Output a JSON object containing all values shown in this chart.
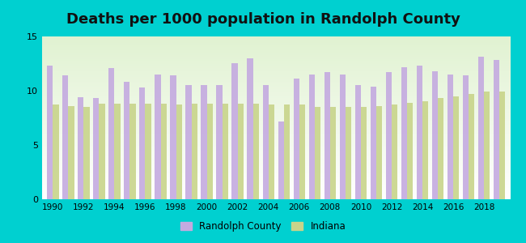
{
  "title": "Deaths per 1000 population in Randolph County",
  "years": [
    1990,
    1991,
    1992,
    1993,
    1994,
    1995,
    1996,
    1997,
    1998,
    1999,
    2000,
    2001,
    2002,
    2003,
    2004,
    2005,
    2006,
    2007,
    2008,
    2009,
    2010,
    2011,
    2012,
    2013,
    2014,
    2015,
    2016,
    2017,
    2018,
    2019
  ],
  "randolph": [
    12.3,
    11.4,
    9.4,
    9.3,
    12.1,
    10.8,
    10.3,
    11.5,
    11.4,
    10.5,
    10.5,
    10.5,
    12.5,
    13.0,
    10.5,
    7.2,
    11.1,
    11.5,
    11.7,
    11.5,
    10.5,
    10.4,
    11.7,
    12.2,
    12.3,
    11.8,
    11.5,
    11.4,
    13.1,
    12.8
  ],
  "indiana": [
    8.7,
    8.6,
    8.5,
    8.8,
    8.8,
    8.8,
    8.8,
    8.8,
    8.7,
    8.8,
    8.8,
    8.8,
    8.8,
    8.8,
    8.7,
    8.7,
    8.7,
    8.5,
    8.5,
    8.5,
    8.5,
    8.6,
    8.7,
    8.9,
    9.0,
    9.3,
    9.5,
    9.7,
    9.9,
    9.9
  ],
  "randolph_color": "#c4aae0",
  "indiana_color": "#c8d48a",
  "background_color": "#00d0d0",
  "ylim": [
    0,
    15
  ],
  "yticks": [
    0,
    5,
    10,
    15
  ],
  "title_fontsize": 13,
  "bar_width": 0.38,
  "legend_randolph": "Randolph County",
  "legend_indiana": "Indiana"
}
